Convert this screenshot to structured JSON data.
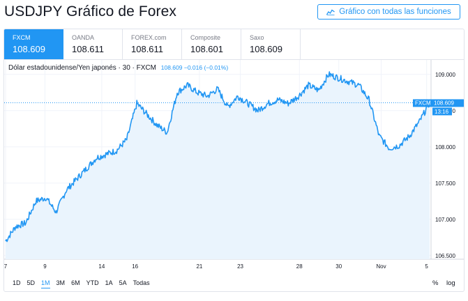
{
  "header": {
    "title": "USDJPY Gráfico de Forex",
    "full_chart_button": "Gráfico con todas las funciones",
    "full_chart_icon": "chart-line-icon"
  },
  "tabs": [
    {
      "name": "FXCM",
      "price": "108.609",
      "active": true
    },
    {
      "name": "OANDA",
      "price": "108.611",
      "active": false
    },
    {
      "name": "FOREX.com",
      "price": "108.611",
      "active": false
    },
    {
      "name": "Composite",
      "price": "108.601",
      "active": false
    },
    {
      "name": "Saxo",
      "price": "108.609",
      "active": false
    }
  ],
  "legend": {
    "symbol": "Dólar estadounidense/Yen japonés · 30 · FXCM",
    "values": "108.609  −0.016 (−0.01%)"
  },
  "price_label": {
    "source": "FXCM",
    "price": "108.609",
    "countdown": "13:16"
  },
  "ranges": [
    {
      "label": "1D",
      "active": false
    },
    {
      "label": "5D",
      "active": false
    },
    {
      "label": "1M",
      "active": true
    },
    {
      "label": "3M",
      "active": false
    },
    {
      "label": "6M",
      "active": false
    },
    {
      "label": "YTD",
      "active": false
    },
    {
      "label": "1A",
      "active": false
    },
    {
      "label": "5A",
      "active": false
    },
    {
      "label": "Todas",
      "active": false
    }
  ],
  "options": {
    "percent": "%",
    "log": "log"
  },
  "colors": {
    "accent": "#2196f3",
    "area_fill": "#eaf4fd",
    "grid": "#f0f3fa",
    "text": "#131722",
    "muted": "#787b86"
  },
  "chart_data": {
    "type": "area",
    "ylim": [
      106.45,
      109.2
    ],
    "y_ticks": [
      "109.000",
      "108.500",
      "108.000",
      "107.500",
      "107.000",
      "106.500"
    ],
    "x_ticks": [
      "7",
      "9",
      "14",
      "16",
      "21",
      "23",
      "28",
      "30",
      "Nov",
      "5"
    ],
    "last_value": 108.609,
    "series": [
      {
        "x": [
          0,
          0.5,
          1,
          1.5,
          2,
          2.5,
          3,
          3.5,
          4,
          4.5,
          5,
          5.5,
          6,
          6.5,
          7,
          7.5,
          8,
          8.5,
          9,
          9.5,
          10,
          10.5,
          11,
          11.5,
          12,
          12.5,
          13,
          13.5,
          14,
          14.5,
          15,
          15.5,
          16,
          16.5,
          17,
          17.5,
          18,
          18.5,
          19,
          19.5,
          20,
          20.5,
          21
        ],
        "values": [
          106.7,
          106.9,
          106.95,
          107.25,
          107.3,
          107.1,
          107.4,
          107.55,
          107.7,
          107.85,
          107.9,
          107.95,
          108.1,
          108.6,
          108.45,
          108.3,
          108.2,
          108.75,
          108.85,
          108.75,
          108.7,
          108.8,
          108.55,
          108.7,
          108.6,
          108.5,
          108.6,
          108.65,
          108.6,
          108.7,
          108.85,
          108.78,
          109.0,
          108.95,
          108.9,
          108.85,
          108.65,
          108.15,
          107.98,
          108.02,
          108.15,
          108.35,
          108.609
        ]
      }
    ]
  }
}
